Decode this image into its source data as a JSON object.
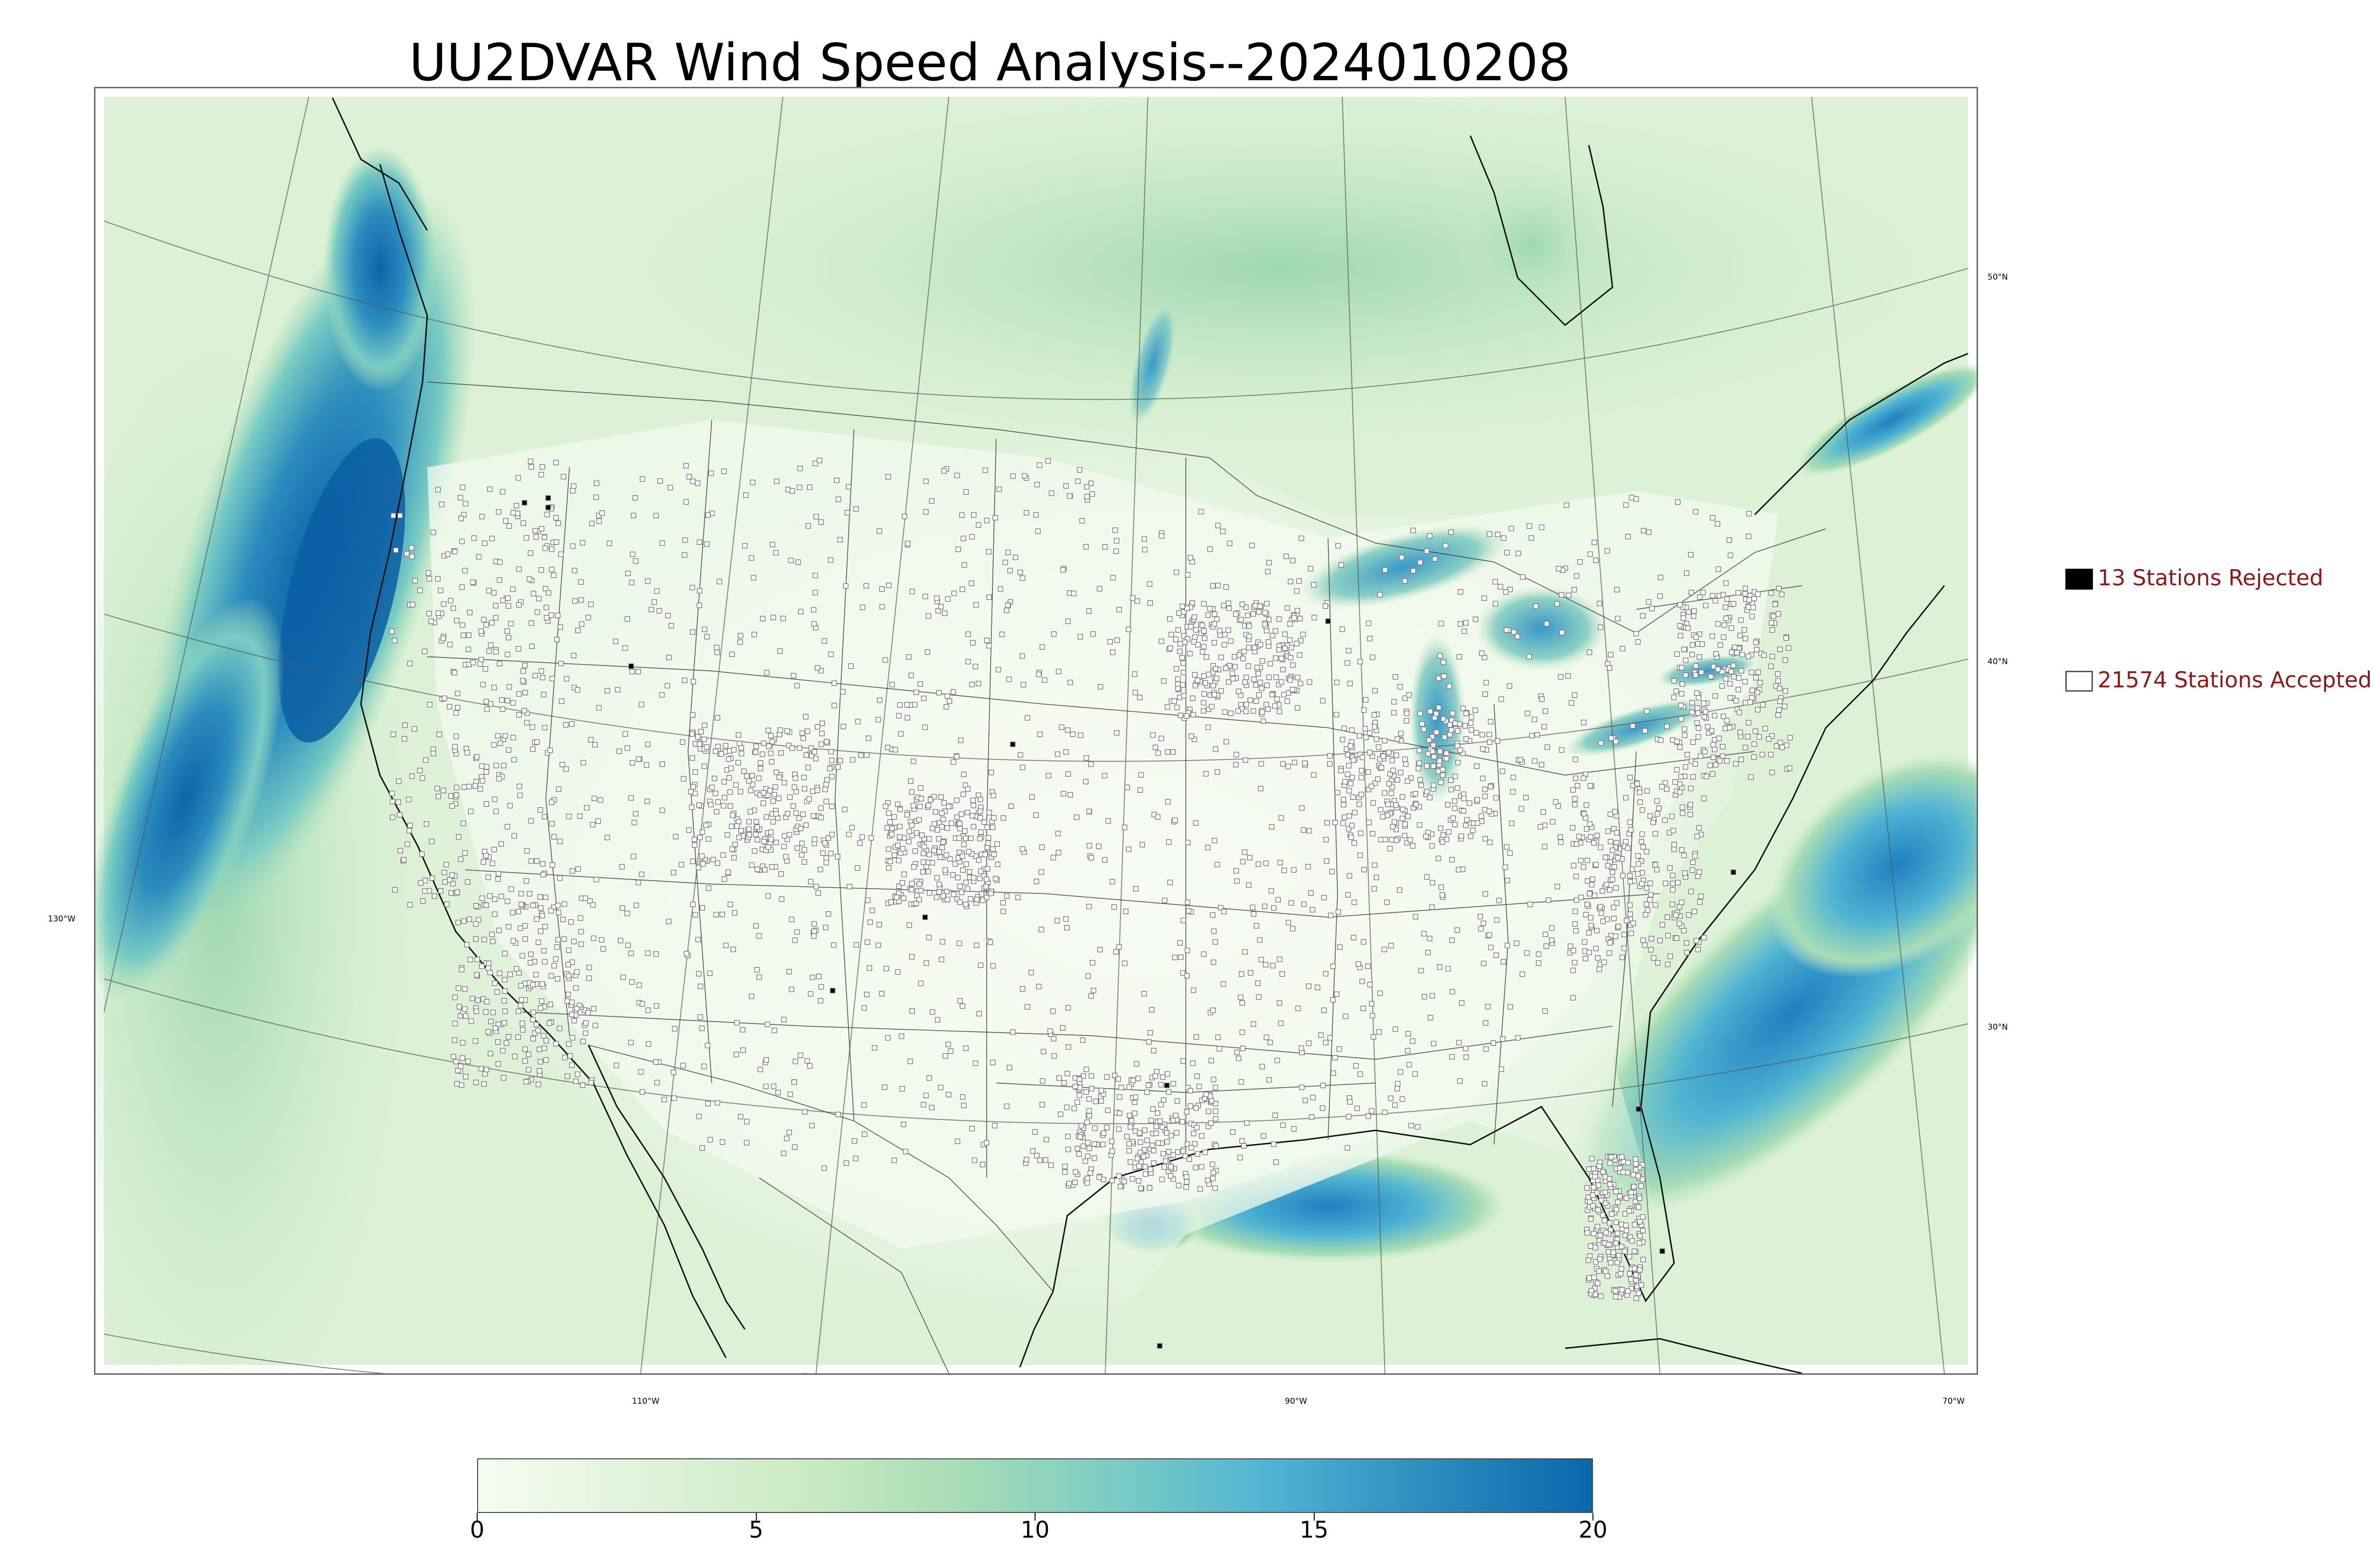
{
  "title": "UU2DVAR Wind Speed Analysis--2024010208",
  "map": {
    "background_color": "#e3f4dd",
    "land_color": "#f1f9ed",
    "strong_wind_color": "#1f7fc0",
    "moderate_wind_color": "#a7dcc0",
    "station_color": "#7a6f7a",
    "latitude_labels": [
      "50°N",
      "40°N",
      "30°N"
    ],
    "longitude_labels": [
      "130°W",
      "110°W",
      "90°W",
      "70°W"
    ]
  },
  "legend": {
    "rejected": {
      "label": "13 Stations Rejected",
      "color": "#000000"
    },
    "accepted": {
      "label": "21574 Stations Accepted",
      "color": "#ffffff"
    }
  },
  "colorbar": {
    "min": 0,
    "max": 20,
    "ticks": [
      "0",
      "5",
      "10",
      "15",
      "20"
    ],
    "colors": [
      "#f7fcf0",
      "#e0f3db",
      "#ccebc5",
      "#a8ddb5",
      "#7bccc4",
      "#4eb3d3",
      "#2b8cbe",
      "#0868ac"
    ]
  }
}
